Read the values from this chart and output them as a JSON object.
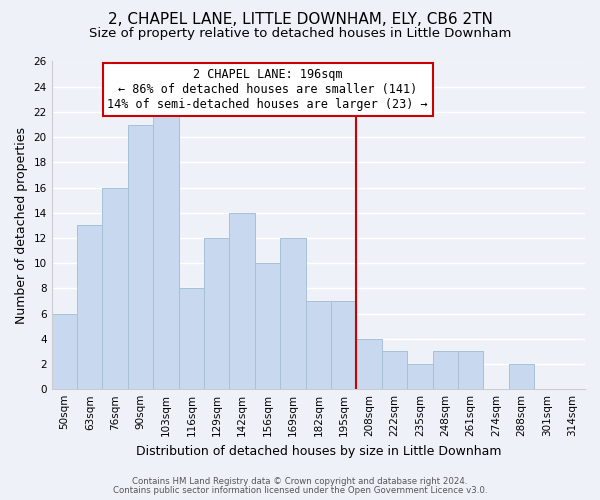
{
  "title": "2, CHAPEL LANE, LITTLE DOWNHAM, ELY, CB6 2TN",
  "subtitle": "Size of property relative to detached houses in Little Downham",
  "xlabel": "Distribution of detached houses by size in Little Downham",
  "ylabel": "Number of detached properties",
  "footer_line1": "Contains HM Land Registry data © Crown copyright and database right 2024.",
  "footer_line2": "Contains public sector information licensed under the Open Government Licence v3.0.",
  "bar_labels": [
    "50sqm",
    "63sqm",
    "76sqm",
    "90sqm",
    "103sqm",
    "116sqm",
    "129sqm",
    "142sqm",
    "156sqm",
    "169sqm",
    "182sqm",
    "195sqm",
    "208sqm",
    "222sqm",
    "235sqm",
    "248sqm",
    "261sqm",
    "274sqm",
    "288sqm",
    "301sqm",
    "314sqm"
  ],
  "bar_values": [
    6,
    13,
    16,
    21,
    22,
    8,
    12,
    14,
    10,
    12,
    7,
    7,
    4,
    3,
    2,
    3,
    3,
    0,
    2,
    0,
    0
  ],
  "bar_color": "#c8d8ee",
  "bar_edge_color": "#a8c0d8",
  "vline_x_index": 11.5,
  "vline_color": "#cc0000",
  "annotation_title": "2 CHAPEL LANE: 196sqm",
  "annotation_line1": "← 86% of detached houses are smaller (141)",
  "annotation_line2": "14% of semi-detached houses are larger (23) →",
  "annotation_box_color": "#ffffff",
  "annotation_box_edge_color": "#cc0000",
  "ylim": [
    0,
    26
  ],
  "yticks": [
    0,
    2,
    4,
    6,
    8,
    10,
    12,
    14,
    16,
    18,
    20,
    22,
    24,
    26
  ],
  "background_color": "#eef2f8",
  "grid_color": "#ffffff",
  "title_fontsize": 11,
  "subtitle_fontsize": 9.5,
  "axis_label_fontsize": 9,
  "tick_fontsize": 7.5,
  "annotation_fontsize": 8.5
}
